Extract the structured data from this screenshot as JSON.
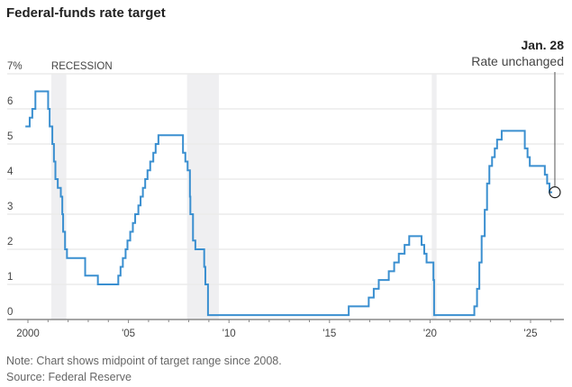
{
  "title": "Federal-funds rate target",
  "note": "Note: Chart shows midpoint of target range since 2008.",
  "source": "Source: Federal Reserve",
  "chart_data": {
    "type": "line",
    "step": true,
    "title": "Federal-funds rate target",
    "ylim": [
      0,
      7
    ],
    "yticks": [
      0,
      1,
      2,
      3,
      4,
      5,
      6,
      7
    ],
    "ytick_labels": [
      "0",
      "1",
      "2",
      "3",
      "4",
      "5",
      "6",
      "7%"
    ],
    "xlim": [
      "1999-11-01",
      "2026-02-15"
    ],
    "xticks": [
      "2000",
      "'05",
      "'10",
      "'15",
      "'20",
      "'25"
    ],
    "xtick_years": [
      2000,
      2005,
      2010,
      2015,
      2020,
      2025
    ],
    "grid": true,
    "line_color": "#3a8fd0",
    "recession_label": "RECESSION",
    "recession_color": "#efeff1",
    "recessions": [
      [
        "2001-03-01",
        "2001-11-30"
      ],
      [
        "2007-12-01",
        "2009-06-30"
      ],
      [
        "2020-02-01",
        "2020-04-30"
      ]
    ],
    "annotation": {
      "date": "2026-01-28",
      "value": 3.625,
      "title": "Jan. 28",
      "text": "Rate unchanged"
    },
    "points": [
      [
        "1999-11-16",
        5.5
      ],
      [
        "2000-02-02",
        5.75
      ],
      [
        "2000-03-21",
        6.0
      ],
      [
        "2000-05-16",
        6.5
      ],
      [
        "2001-01-03",
        6.0
      ],
      [
        "2001-01-31",
        5.5
      ],
      [
        "2001-03-20",
        5.0
      ],
      [
        "2001-04-18",
        4.5
      ],
      [
        "2001-05-15",
        4.0
      ],
      [
        "2001-06-27",
        3.75
      ],
      [
        "2001-08-21",
        3.5
      ],
      [
        "2001-09-17",
        3.0
      ],
      [
        "2001-10-02",
        2.5
      ],
      [
        "2001-11-06",
        2.0
      ],
      [
        "2001-12-11",
        1.75
      ],
      [
        "2002-11-06",
        1.25
      ],
      [
        "2003-06-25",
        1.0
      ],
      [
        "2004-06-30",
        1.25
      ],
      [
        "2004-08-10",
        1.5
      ],
      [
        "2004-09-21",
        1.75
      ],
      [
        "2004-11-10",
        2.0
      ],
      [
        "2004-12-14",
        2.25
      ],
      [
        "2005-02-02",
        2.5
      ],
      [
        "2005-03-22",
        2.75
      ],
      [
        "2005-05-03",
        3.0
      ],
      [
        "2005-06-30",
        3.25
      ],
      [
        "2005-08-09",
        3.5
      ],
      [
        "2005-09-20",
        3.75
      ],
      [
        "2005-11-01",
        4.0
      ],
      [
        "2005-12-13",
        4.25
      ],
      [
        "2006-01-31",
        4.5
      ],
      [
        "2006-03-28",
        4.75
      ],
      [
        "2006-05-10",
        5.0
      ],
      [
        "2006-06-29",
        5.25
      ],
      [
        "2007-09-18",
        4.75
      ],
      [
        "2007-10-31",
        4.5
      ],
      [
        "2007-12-11",
        4.25
      ],
      [
        "2008-01-22",
        3.5
      ],
      [
        "2008-01-30",
        3.0
      ],
      [
        "2008-03-18",
        2.25
      ],
      [
        "2008-04-30",
        2.0
      ],
      [
        "2008-10-08",
        1.5
      ],
      [
        "2008-10-29",
        1.0
      ],
      [
        "2008-12-16",
        0.125
      ],
      [
        "2015-12-16",
        0.375
      ],
      [
        "2016-12-14",
        0.625
      ],
      [
        "2017-03-15",
        0.875
      ],
      [
        "2017-06-14",
        1.125
      ],
      [
        "2017-12-13",
        1.375
      ],
      [
        "2018-03-21",
        1.625
      ],
      [
        "2018-06-13",
        1.875
      ],
      [
        "2018-09-26",
        2.125
      ],
      [
        "2018-12-19",
        2.375
      ],
      [
        "2019-07-31",
        2.125
      ],
      [
        "2019-09-18",
        1.875
      ],
      [
        "2019-10-30",
        1.625
      ],
      [
        "2020-03-03",
        1.125
      ],
      [
        "2020-03-15",
        0.125
      ],
      [
        "2022-03-16",
        0.375
      ],
      [
        "2022-05-04",
        0.875
      ],
      [
        "2022-06-15",
        1.625
      ],
      [
        "2022-07-27",
        2.375
      ],
      [
        "2022-09-21",
        3.125
      ],
      [
        "2022-11-02",
        3.875
      ],
      [
        "2022-12-14",
        4.375
      ],
      [
        "2023-02-01",
        4.625
      ],
      [
        "2023-03-22",
        4.875
      ],
      [
        "2023-05-03",
        5.125
      ],
      [
        "2023-07-26",
        5.375
      ],
      [
        "2024-09-18",
        4.875
      ],
      [
        "2024-11-07",
        4.625
      ],
      [
        "2024-12-18",
        4.375
      ],
      [
        "2025-09-17",
        4.125
      ],
      [
        "2025-10-29",
        3.875
      ],
      [
        "2025-12-10",
        3.625
      ],
      [
        "2026-01-28",
        3.625
      ]
    ]
  }
}
